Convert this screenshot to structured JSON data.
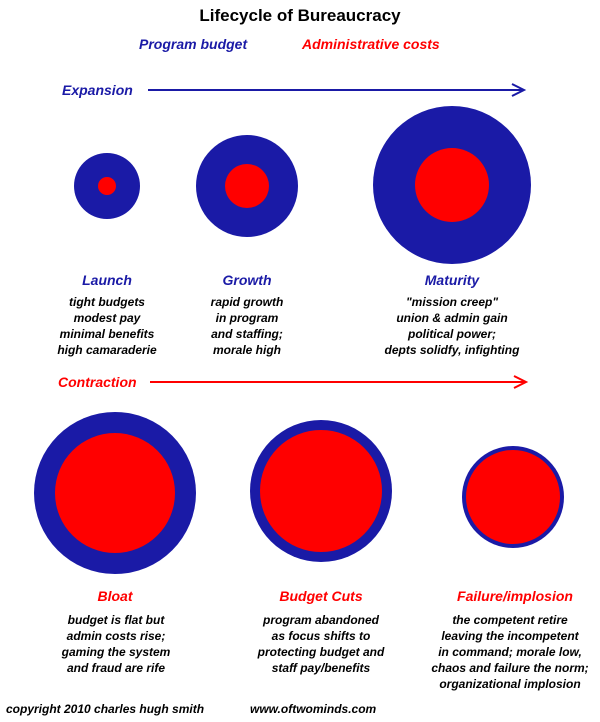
{
  "title": "Lifecycle of Bureaucracy",
  "legend": {
    "program_budget": "Program budget",
    "admin_costs": "Administrative costs"
  },
  "colors": {
    "blue": "#1a1aa6",
    "red": "#ff0000"
  },
  "expansion": {
    "label": "Expansion",
    "stages": [
      {
        "title": "Launch",
        "lines": [
          "tight budgets",
          "modest pay",
          "minimal benefits",
          "high camaraderie"
        ]
      },
      {
        "title": "Growth",
        "lines": [
          "rapid growth",
          "in program",
          "and staffing;",
          "morale high"
        ]
      },
      {
        "title": "Maturity",
        "lines": [
          "\"mission creep\"",
          "union & admin gain",
          "political power;",
          "depts solidfy, infighting"
        ]
      }
    ]
  },
  "contraction": {
    "label": "Contraction",
    "stages": [
      {
        "title": "Bloat",
        "lines": [
          "budget is flat but",
          "admin costs rise;",
          "gaming the system",
          "and fraud are rife"
        ]
      },
      {
        "title": "Budget Cuts",
        "lines": [
          "program abandoned",
          "as focus shifts to",
          "protecting budget and",
          "staff pay/benefits"
        ]
      },
      {
        "title": "Failure/implosion",
        "lines": [
          "the competent retire",
          "leaving the incompetent",
          "in command; morale low,",
          "chaos and failure the norm;",
          "organizational implosion"
        ]
      }
    ]
  },
  "footer": {
    "copyright": "copyright 2010  charles hugh smith",
    "website": "www.oftwominds.com"
  }
}
